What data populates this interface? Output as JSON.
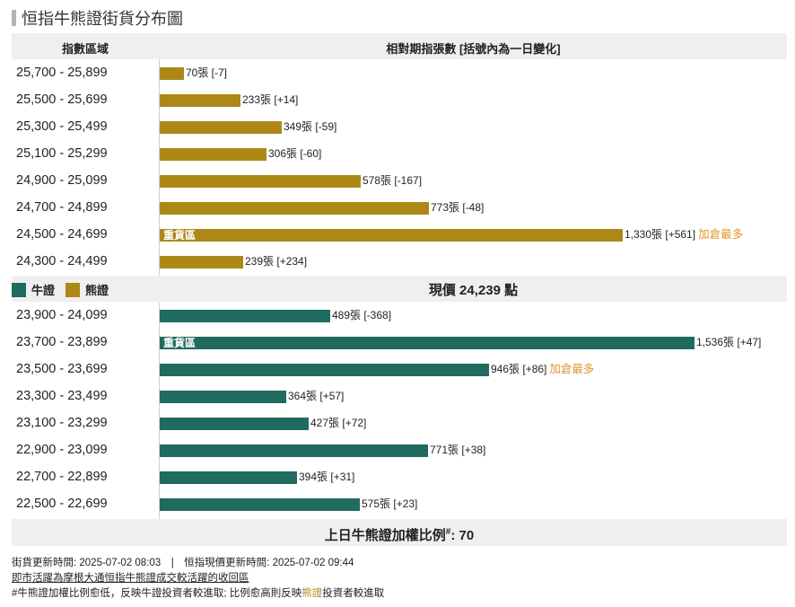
{
  "title": "恒指牛熊證街貨分布圖",
  "header": {
    "col1": "指數區域",
    "col2": "相對期指張數 [括號內為一日變化]"
  },
  "legend": {
    "bull": "牛證",
    "bear": "熊證"
  },
  "colors": {
    "bull": "#1f6b60",
    "bear": "#ad8816"
  },
  "current_price": "現價 24,239 點",
  "heavy_label": "重貨區",
  "most_label": "加倉最多",
  "footer_ratio": {
    "label": "上日牛熊證加權比例",
    "mark": "#",
    "value": ": 70"
  },
  "notes": {
    "update_line": "街貨更新時間: 2025-07-02 08:03　|　恒指現價更新時間: 2025-07-02 09:44",
    "line2": "即市活躍為摩根大通恒指牛熊證成交較活躍的收回區",
    "line3_prefix": "#牛熊證加權比例愈低，反映",
    "line3_bull": "牛證",
    "line3_mid": "投資者較進取; 比例愈高則反映",
    "line3_bear": "熊證",
    "line3_suffix": "投資者較進取"
  },
  "chart_data": {
    "type": "bar",
    "orientation": "horizontal",
    "title": "恒指牛熊證街貨分布圖",
    "xlabel": "相對期指張數 [括號內為一日變化]",
    "ylabel": "指數區域",
    "xlim": [
      0,
      1800
    ],
    "series": [
      {
        "name": "熊證",
        "categories": [
          "25,700 - 25,899",
          "25,500 - 25,699",
          "25,300 - 25,499",
          "25,100 - 25,299",
          "24,900 - 25,099",
          "24,700 - 24,899",
          "24,500 - 24,699",
          "24,300 - 24,499"
        ],
        "values": [
          70,
          233,
          349,
          306,
          578,
          773,
          1330,
          239
        ],
        "labels": [
          "70張 [-7]",
          "233張 [+14]",
          "349張 [-59]",
          "306張 [-60]",
          "578張 [-167]",
          "773張 [-48]",
          "1,330張 [+561]",
          "239張 [+234]"
        ],
        "heavy_index": 6,
        "most_index": 6
      },
      {
        "name": "牛證",
        "categories": [
          "23,900 - 24,099",
          "23,700 - 23,899",
          "23,500 - 23,699",
          "23,300 - 23,499",
          "23,100 - 23,299",
          "22,900 - 23,099",
          "22,700 - 22,899",
          "22,500 - 22,699"
        ],
        "values": [
          489,
          1536,
          946,
          364,
          427,
          771,
          394,
          575
        ],
        "labels": [
          "489張 [-368]",
          "1,536張 [+47]",
          "946張 [+86]",
          "364張 [+57]",
          "427張 [+72]",
          "771張 [+38]",
          "394張 [+31]",
          "575張 [+23]"
        ],
        "heavy_index": 1,
        "most_index": 2
      }
    ]
  }
}
